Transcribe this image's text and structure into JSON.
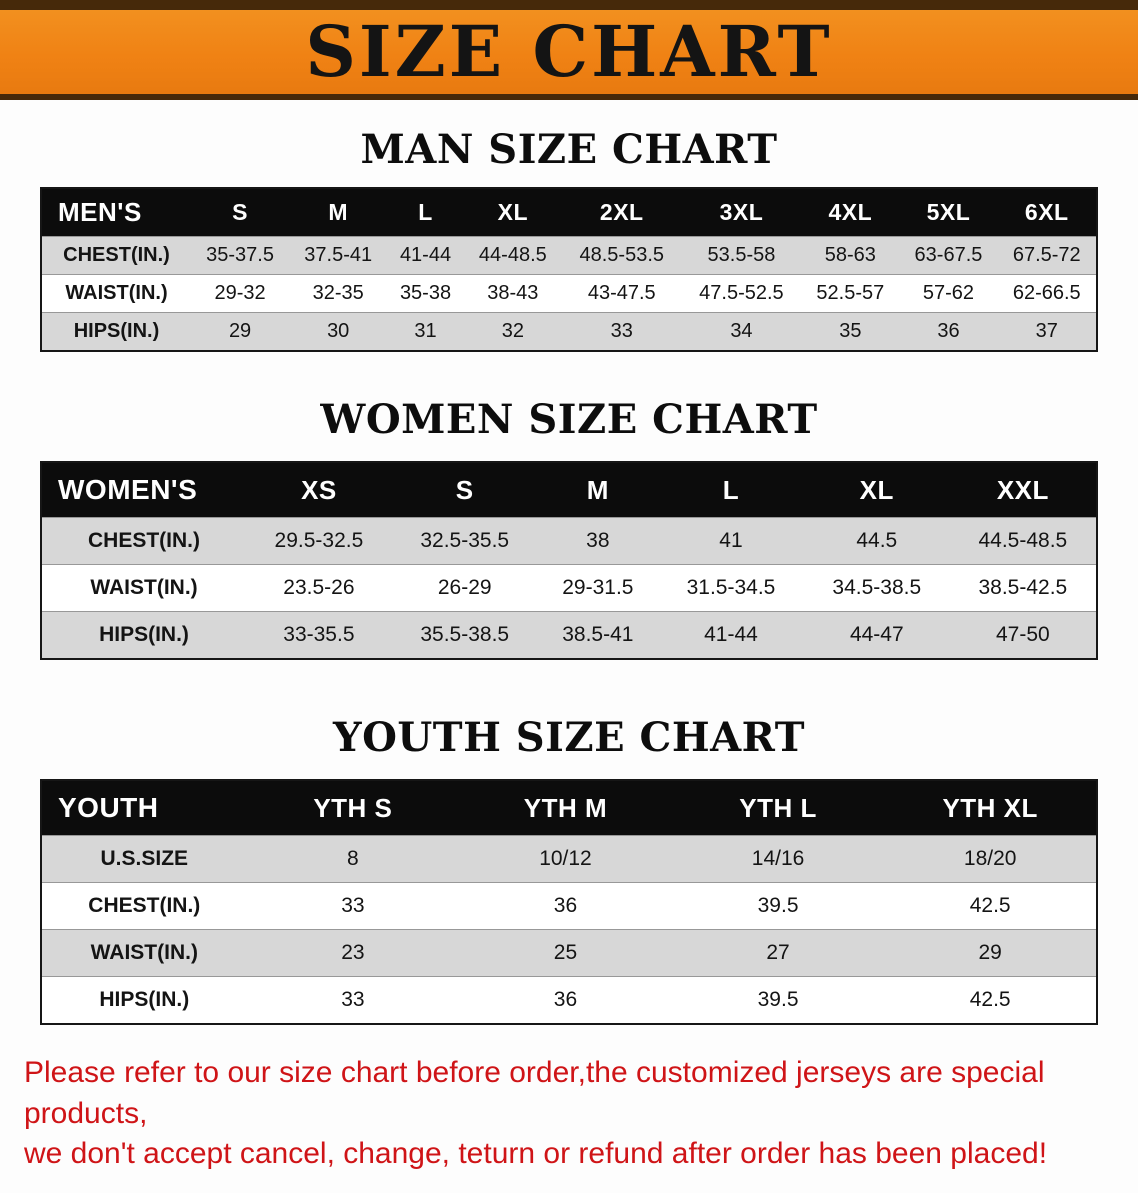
{
  "banner": {
    "title": "SIZE CHART",
    "background_color": "#f1861c",
    "border_color": "#46290a"
  },
  "men_chart": {
    "heading": "MAN SIZE CHART",
    "header": [
      "MEN'S",
      "S",
      "M",
      "L",
      "XL",
      "2XL",
      "3XL",
      "4XL",
      "5XL",
      "6XL"
    ],
    "rows": [
      [
        "CHEST(IN.)",
        "35-37.5",
        "37.5-41",
        "41-44",
        "44-48.5",
        "48.5-53.5",
        "53.5-58",
        "58-63",
        "63-67.5",
        "67.5-72"
      ],
      [
        "WAIST(IN.)",
        "29-32",
        "32-35",
        "35-38",
        "38-43",
        "43-47.5",
        "47.5-52.5",
        "52.5-57",
        "57-62",
        "62-66.5"
      ],
      [
        "HIPS(IN.)",
        "29",
        "30",
        "31",
        "32",
        "33",
        "34",
        "35",
        "36",
        "37"
      ]
    ]
  },
  "women_chart": {
    "heading": "WOMEN SIZE CHART",
    "header": [
      "WOMEN'S",
      "XS",
      "S",
      "M",
      "L",
      "XL",
      "XXL"
    ],
    "rows": [
      [
        "CHEST(IN.)",
        "29.5-32.5",
        "32.5-35.5",
        "38",
        "41",
        "44.5",
        "44.5-48.5"
      ],
      [
        "WAIST(IN.)",
        "23.5-26",
        "26-29",
        "29-31.5",
        "31.5-34.5",
        "34.5-38.5",
        "38.5-42.5"
      ],
      [
        "HIPS(IN.)",
        "33-35.5",
        "35.5-38.5",
        "38.5-41",
        "41-44",
        "44-47",
        "47-50"
      ]
    ]
  },
  "youth_chart": {
    "heading": "YOUTH SIZE CHART",
    "header": [
      "YOUTH",
      "YTH S",
      "YTH M",
      "YTH L",
      "YTH XL"
    ],
    "rows": [
      [
        "U.S.SIZE",
        "8",
        "10/12",
        "14/16",
        "18/20"
      ],
      [
        "CHEST(IN.)",
        "33",
        "36",
        "39.5",
        "42.5"
      ],
      [
        "WAIST(IN.)",
        "23",
        "25",
        "27",
        "29"
      ],
      [
        "HIPS(IN.)",
        "33",
        "36",
        "39.5",
        "42.5"
      ]
    ]
  },
  "footer": {
    "line1": "Please refer to our size chart before order,the customized jerseys are special products,",
    "line2": "we don't accept cancel, change, teturn or refund after order has been placed!",
    "text_color": "#cf1417"
  }
}
